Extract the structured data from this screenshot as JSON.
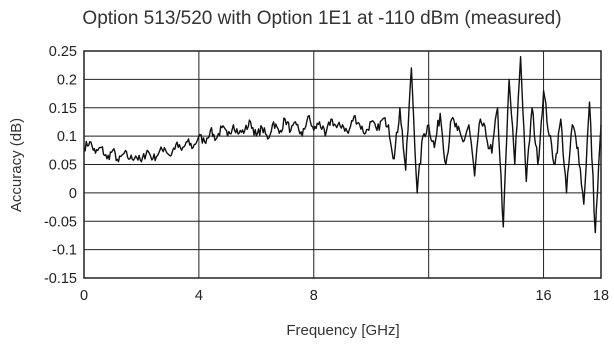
{
  "chart_data": {
    "type": "line",
    "title": "Option 513/520 with Option 1E1 at -110 dBm (measured)",
    "xlabel": "Frequency [GHz]",
    "ylabel": "Accuracy (dB)",
    "xlim": [
      0,
      18
    ],
    "ylim": [
      -0.15,
      0.25
    ],
    "x_ticks": [
      0,
      4,
      8,
      12,
      16,
      18
    ],
    "x_tick_labels": [
      "0",
      "4",
      "8",
      "",
      "16",
      "18"
    ],
    "y_ticks": [
      -0.15,
      -0.1,
      -0.05,
      0,
      0.05,
      0.1,
      0.15,
      0.2,
      0.25
    ],
    "y_tick_labels": [
      "-0.15",
      "-0.1",
      "-0.05",
      "0",
      "0.05",
      "0.1",
      "0.15",
      "0.2",
      "0.25"
    ],
    "grid": true,
    "legend": "none",
    "line_color": "#111111",
    "series": [
      {
        "x": [
          0,
          0.2,
          0.4,
          0.6,
          0.8,
          1.0,
          1.2,
          1.4,
          1.6,
          1.8,
          2.0,
          2.2,
          2.4,
          2.6,
          2.8,
          3.0,
          3.2,
          3.4,
          3.6,
          3.8,
          4.0,
          4.2,
          4.4,
          4.6,
          4.8,
          5.0,
          5.2,
          5.4,
          5.6,
          5.8,
          6.0,
          6.2,
          6.4,
          6.6,
          6.8,
          7.0,
          7.2,
          7.4,
          7.6,
          7.8,
          8.0,
          8.2,
          8.4,
          8.6,
          8.8,
          9.0,
          9.2,
          9.4,
          9.6,
          9.8,
          10.0,
          10.2,
          10.4,
          10.6,
          10.8,
          11.0,
          11.2,
          11.4,
          11.6,
          11.8,
          12.0,
          12.2,
          12.4,
          12.6,
          12.8,
          13.0,
          13.2,
          13.4,
          13.6,
          13.8,
          14.0,
          14.2,
          14.4,
          14.6,
          14.8,
          15.0,
          15.2,
          15.4,
          15.6,
          15.8,
          16.0,
          16.2,
          16.4,
          16.6,
          16.8,
          17.0,
          17.2,
          17.4,
          17.6,
          17.8,
          18.0
        ],
        "values": [
          0.08,
          0.09,
          0.07,
          0.08,
          0.06,
          0.075,
          0.055,
          0.07,
          0.06,
          0.065,
          0.055,
          0.075,
          0.06,
          0.07,
          0.08,
          0.065,
          0.085,
          0.075,
          0.09,
          0.08,
          0.1,
          0.09,
          0.11,
          0.095,
          0.115,
          0.1,
          0.12,
          0.105,
          0.11,
          0.125,
          0.1,
          0.115,
          0.095,
          0.125,
          0.105,
          0.13,
          0.11,
          0.12,
          0.1,
          0.135,
          0.11,
          0.125,
          0.1,
          0.13,
          0.115,
          0.12,
          0.105,
          0.135,
          0.12,
          0.105,
          0.125,
          0.11,
          0.13,
          0.12,
          0.06,
          0.15,
          0.04,
          0.22,
          0.0,
          0.1,
          0.12,
          0.08,
          0.14,
          0.05,
          0.13,
          0.11,
          0.09,
          0.12,
          0.03,
          0.13,
          0.1,
          0.07,
          0.15,
          -0.06,
          0.2,
          0.05,
          0.24,
          0.02,
          0.15,
          0.05,
          0.18,
          0.1,
          0.05,
          0.13,
          0.0,
          0.12,
          0.08,
          -0.02,
          0.16,
          -0.07,
          0.12
        ]
      }
    ]
  }
}
